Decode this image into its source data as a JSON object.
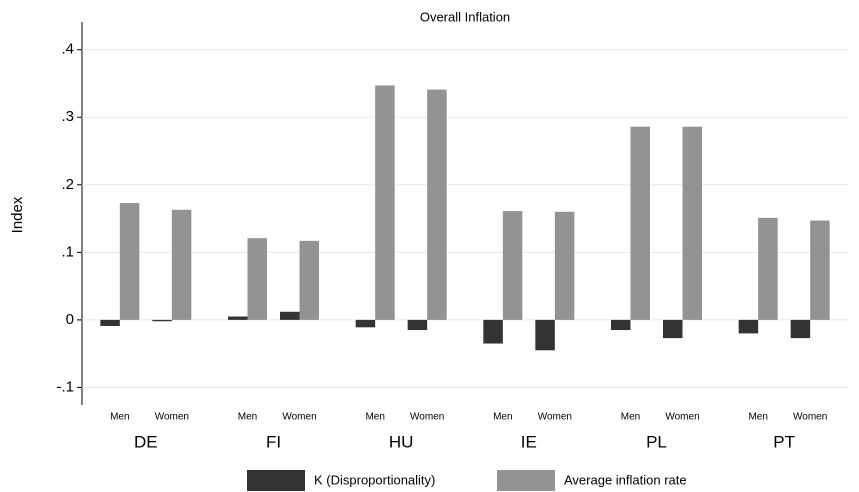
{
  "chart_data": {
    "type": "grouped-bar",
    "title": "Overall Inflation",
    "y_label": "Index",
    "groups": [
      "DE",
      "FI",
      "HU",
      "IE",
      "PL",
      "PT"
    ],
    "categories": [
      "Men",
      "Women",
      "Men",
      "Women",
      "Men",
      "Women",
      "Men",
      "Women",
      "Men",
      "Women",
      "Men",
      "Women"
    ],
    "series": [
      {
        "name": "K (Disproportionality)",
        "color": "#333333",
        "values": [
          -0.009,
          -0.002,
          0.005,
          0.012,
          -0.011,
          -0.015,
          -0.035,
          -0.045,
          -0.015,
          -0.027,
          -0.02,
          -0.027
        ]
      },
      {
        "name": "Average inflation rate",
        "color": "#939393",
        "values": [
          0.173,
          0.163,
          0.121,
          0.117,
          0.347,
          0.341,
          0.161,
          0.16,
          0.286,
          0.286,
          0.151,
          0.147
        ]
      }
    ],
    "ylim": [
      -0.126,
      0.441
    ],
    "yticks": [
      {
        "value": -0.1,
        "label": "-.1"
      },
      0,
      {
        "value": 0.1,
        "label": ".1"
      },
      {
        "value": 0.2,
        "label": ".2"
      },
      {
        "value": 0.3,
        "label": ".3"
      },
      {
        "value": 0.4,
        "label": ".4"
      }
    ],
    "grid": true,
    "legend": "bottom"
  }
}
